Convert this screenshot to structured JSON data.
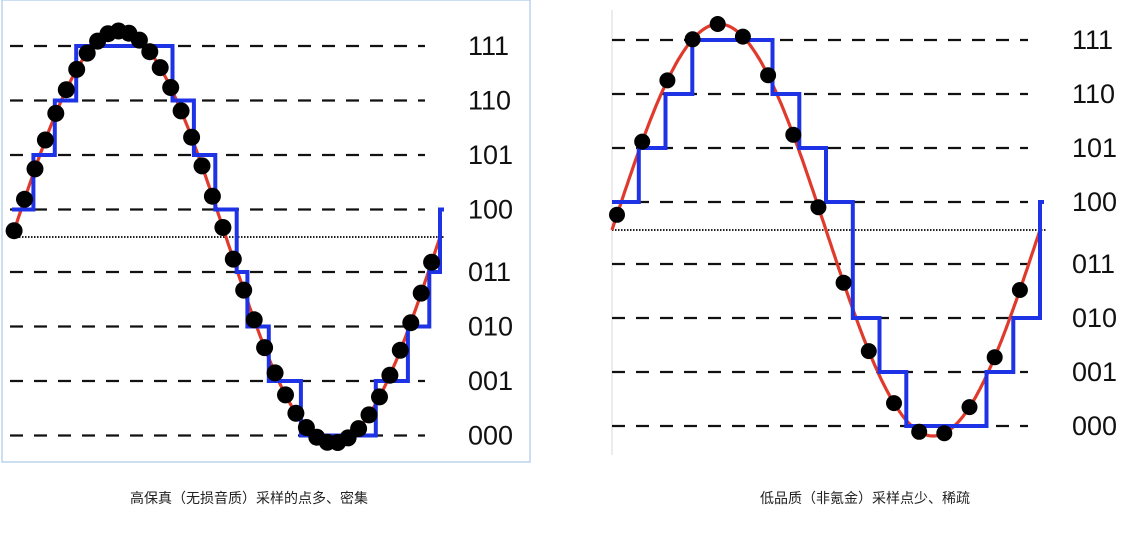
{
  "level_labels": [
    "111",
    "110",
    "101",
    "100",
    "011",
    "010",
    "001",
    "000"
  ],
  "panels": [
    {
      "id": "high",
      "caption": "高保真（无损音质）采样的点多、密集",
      "sample_count": 41,
      "show_curve": false
    },
    {
      "id": "low",
      "caption": "低品质（非氪金）采样点少、稀疏",
      "sample_count": 17,
      "show_curve": true
    }
  ],
  "colors": {
    "sine": "#e03a2c",
    "steps": "#1f33e6",
    "dots": "#000000",
    "grid": "#111111",
    "frame": "#a9c8ea"
  }
}
